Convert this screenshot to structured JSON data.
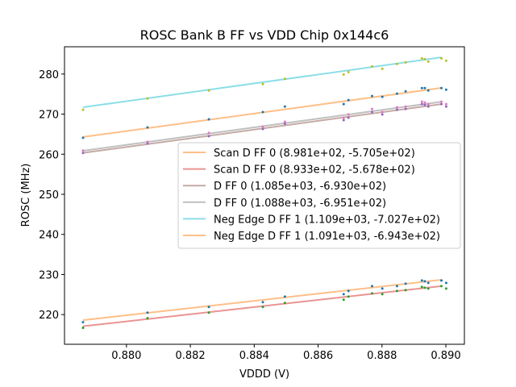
{
  "chart_data": {
    "type": "scatter",
    "title": "ROSC Bank B FF vs VDD Chip 0x144c6",
    "xlabel": "VDDD (V)",
    "ylabel": "ROSC (MHz)",
    "xlim": [
      0.87806,
      0.89058
    ],
    "ylim": [
      212.6,
      286.8
    ],
    "xticks": [
      0.88,
      0.882,
      0.884,
      0.886,
      0.888,
      0.89
    ],
    "xtick_labels": [
      "0.880",
      "0.882",
      "0.884",
      "0.886",
      "0.888",
      "0.890"
    ],
    "yticks": [
      220,
      230,
      240,
      250,
      260,
      270,
      280
    ],
    "ytick_labels": [
      "220",
      "230",
      "240",
      "250",
      "260",
      "270",
      "280"
    ],
    "grid": false,
    "legend_position": "center-right",
    "x": [
      0.87864,
      0.88066,
      0.88258,
      0.88427,
      0.88496,
      0.8868,
      0.88695,
      0.88769,
      0.88801,
      0.88847,
      0.88874,
      0.88925,
      0.88934,
      0.88945,
      0.88986,
      0.89001
    ],
    "fit_range": [
      0.87864,
      0.88986
    ],
    "series": [
      {
        "name": "Scan D FF 0",
        "legend": "Scan D FF 0 (8.981e+02, -5.705e+02)",
        "slope": 898.1,
        "intercept": -570.5,
        "line_color": "#ffbf86",
        "point_color": "#1f77b4",
        "values": [
          218.1,
          220.5,
          221.9,
          223.1,
          224.5,
          225.1,
          225.9,
          227.1,
          226.5,
          227.1,
          227.7,
          228.5,
          228.3,
          227.9,
          228.5,
          227.9
        ]
      },
      {
        "name": "Scan D FF 0",
        "legend": "Scan D FF 0 (8.933e+02, -5.678e+02)",
        "slope": 893.3,
        "intercept": -567.8,
        "line_color": "#ea9393",
        "point_color": "#2ca02c",
        "values": [
          216.7,
          219.1,
          220.5,
          221.9,
          222.9,
          223.7,
          224.5,
          225.3,
          225.1,
          225.9,
          226.1,
          226.9,
          226.7,
          226.5,
          227.1,
          226.5
        ]
      },
      {
        "name": "D FF 0",
        "legend": "D FF 0 (1.085e+03, -6.930e+02)",
        "slope": 1085.0,
        "intercept": -693.0,
        "line_color": "#c5aaa5",
        "point_color": "#9467bd",
        "values": [
          260.3,
          262.7,
          264.5,
          266.3,
          267.6,
          268.5,
          269.1,
          270.5,
          269.9,
          271.1,
          271.3,
          272.5,
          272.3,
          271.9,
          272.5,
          271.9
        ]
      },
      {
        "name": "D FF 0",
        "legend": "D FF 0 (1.088e+03, -6.951e+02)",
        "slope": 1088.0,
        "intercept": -695.1,
        "line_color": "#bfbfbf",
        "point_color": "#e377c2",
        "values": [
          260.9,
          263.1,
          265.3,
          266.9,
          268.1,
          269.1,
          269.9,
          271.3,
          270.5,
          271.7,
          271.9,
          273.1,
          272.9,
          272.5,
          273.1,
          272.5
        ]
      },
      {
        "name": "Neg Edge D FF 1",
        "legend": "Neg Edge D FF 1 (1.109e+03, -7.027e+02)",
        "slope": 1109.0,
        "intercept": -702.7,
        "line_color": "#8bdee7",
        "point_color": "#bcbd22",
        "values": [
          271.1,
          273.9,
          275.9,
          277.5,
          278.8,
          279.9,
          280.5,
          281.9,
          281.3,
          282.5,
          282.9,
          283.9,
          283.7,
          283.1,
          283.9,
          283.3
        ]
      },
      {
        "name": "Neg Edge D FF 1",
        "legend": "Neg Edge D FF 1 (1.091e+03, -6.943e+02)",
        "slope": 1091.0,
        "intercept": -694.3,
        "line_color": "#ffbf86",
        "point_color": "#1f77b4",
        "values": [
          264.1,
          266.7,
          268.7,
          270.5,
          271.9,
          272.5,
          273.5,
          274.5,
          274.3,
          275.1,
          275.7,
          276.5,
          276.5,
          275.9,
          276.5,
          276.1
        ]
      }
    ]
  }
}
